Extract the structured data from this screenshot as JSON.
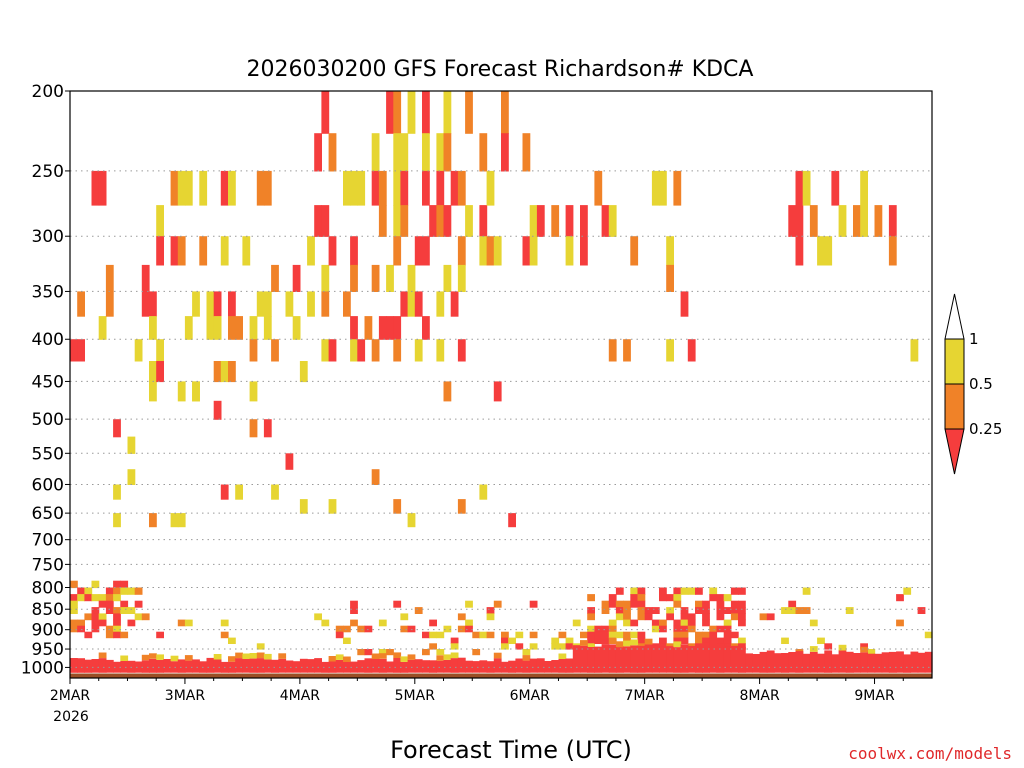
{
  "chart_data": {
    "type": "heatmap",
    "title": "2026030200 GFS Forecast Richardson# KDCA",
    "xlabel": "Forecast Time (UTC)",
    "ylabel": "",
    "x_year": "2026",
    "x_ticks": [
      "2MAR",
      "3MAR",
      "4MAR",
      "5MAR",
      "6MAR",
      "7MAR",
      "8MAR",
      "9MAR"
    ],
    "x_range_hours": [
      0,
      180
    ],
    "y_scale": "log-pressure (hPa), inverted",
    "y_ticks": [
      200,
      250,
      300,
      350,
      400,
      450,
      500,
      550,
      600,
      650,
      700,
      750,
      800,
      850,
      900,
      950,
      1000
    ],
    "y_range": [
      200,
      1030
    ],
    "grid": "dotted horizontal at pressure ticks",
    "legend_position": "right",
    "colorbar": {
      "labels": [
        "1",
        "0.5",
        "0.25"
      ],
      "bins": [
        {
          "range": "0.5-1",
          "color": "#e6d532"
        },
        {
          "range": "0.25-0.5",
          "color": "#f08228"
        },
        {
          "range": "<0.25",
          "color": "#f53d3d"
        }
      ]
    },
    "ground_color": "#9a4e25",
    "credit": "coolwx.com/models"
  }
}
